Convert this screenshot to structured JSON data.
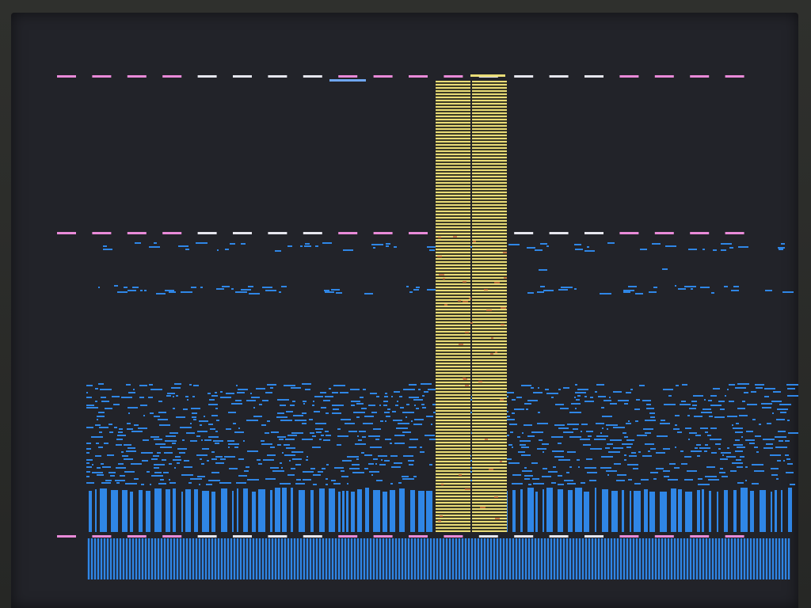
{
  "display": {
    "state": "scrambled-video-output",
    "colors": {
      "background": "#222329",
      "bezel": "#2b2c2a",
      "marker_pink": "#e98ad8",
      "marker_white": "#e6e6ee",
      "marker_blue": "#6fa6f0",
      "glyph_blue": "#2f86e6",
      "column_yellow": "#e9dc77",
      "artifact_orange": "#c86a3c"
    }
  }
}
